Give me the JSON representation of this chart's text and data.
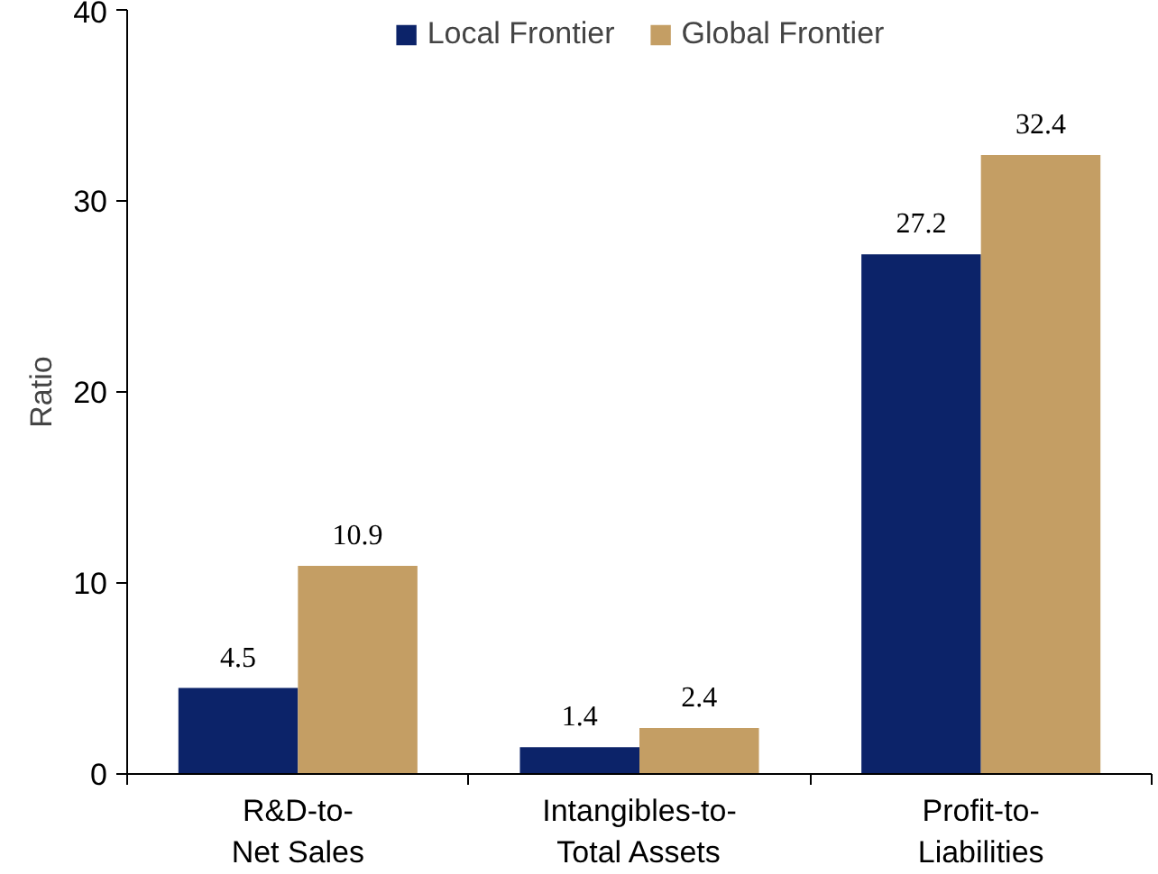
{
  "chart_data": {
    "type": "bar",
    "ylabel": "Ratio",
    "categories": [
      "R&D-to-\nNet Sales",
      "Intangibles-to-\nTotal Assets",
      "Profit-to-\nLiabilities"
    ],
    "series": [
      {
        "name": "Local Frontier",
        "color": "#0c2369",
        "values": [
          4.5,
          1.4,
          27.2
        ]
      },
      {
        "name": "Global Frontier",
        "color": "#c49e64",
        "values": [
          10.9,
          2.4,
          32.4
        ]
      }
    ],
    "ylim": [
      0,
      40
    ],
    "yticks": [
      0,
      10,
      20,
      30,
      40
    ],
    "grid": false,
    "legend": "top",
    "data_labels": true
  }
}
